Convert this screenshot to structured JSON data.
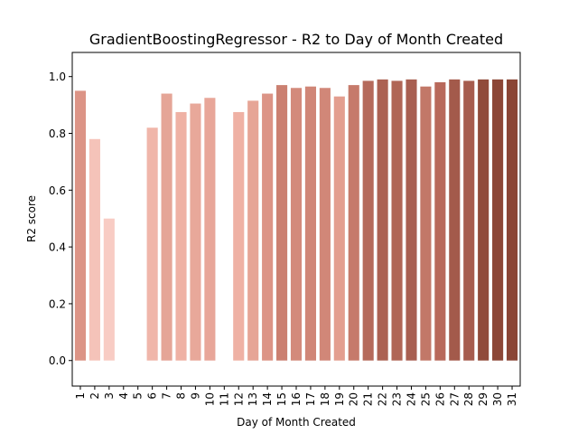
{
  "chart_data": {
    "type": "bar",
    "title": "GradientBoostingRegressor - R2 to Day of Month Created",
    "xlabel": "Day of Month Created",
    "ylabel": "R2 score",
    "ylim": [
      -0.09,
      1.085
    ],
    "yticks": [
      0.0,
      0.2,
      0.4,
      0.6,
      0.8,
      1.0
    ],
    "ytick_labels": [
      "0.0",
      "0.2",
      "0.4",
      "0.6",
      "0.8",
      "1.0"
    ],
    "grid": false,
    "categories": [
      "1",
      "2",
      "3",
      "4",
      "5",
      "6",
      "7",
      "8",
      "9",
      "10",
      "11",
      "12",
      "13",
      "14",
      "15",
      "16",
      "17",
      "18",
      "19",
      "20",
      "21",
      "22",
      "23",
      "24",
      "25",
      "26",
      "27",
      "28",
      "29",
      "30",
      "31"
    ],
    "values": [
      0.95,
      0.78,
      0.5,
      0.0,
      0.0,
      0.82,
      0.94,
      0.875,
      0.905,
      0.925,
      0.0,
      0.875,
      0.915,
      0.94,
      0.97,
      0.96,
      0.965,
      0.96,
      0.93,
      0.97,
      0.985,
      0.99,
      0.985,
      0.99,
      0.965,
      0.98,
      0.99,
      0.985,
      0.99,
      0.99,
      0.99
    ],
    "colors": [
      "#dc9486",
      "#f5c3b9",
      "#f8ccc4",
      "#fadad4",
      "#fadad4",
      "#f0b6aa",
      "#e5a597",
      "#efb1a4",
      "#e8a89a",
      "#e8a699",
      "#fadad4",
      "#efb1a4",
      "#e6a596",
      "#dc9486",
      "#cb8071",
      "#d38a7b",
      "#d08677",
      "#d18778",
      "#e39e8f",
      "#c67a6b",
      "#b56a5b",
      "#ac6253",
      "#b06656",
      "#a85f51",
      "#c27868",
      "#b8695b",
      "#a35a4b",
      "#a65c4e",
      "#904a3a",
      "#8c4636",
      "#8a4535"
    ]
  }
}
